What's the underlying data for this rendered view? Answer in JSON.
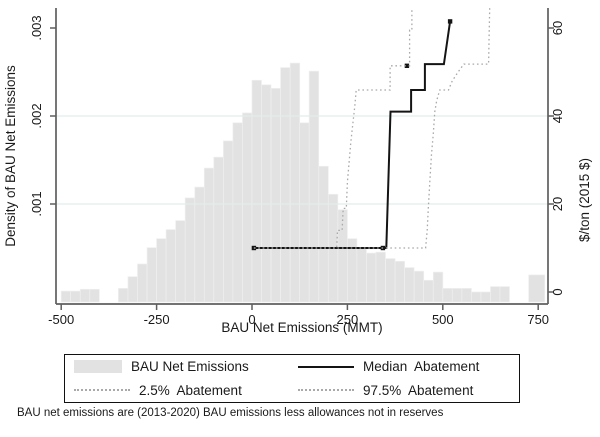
{
  "figure": {
    "x_axis": {
      "title": "BAU Net Emissions (MMT)",
      "ticks": [
        -500,
        -250,
        0,
        250,
        500,
        750
      ]
    },
    "y_left": {
      "title": "Density of BAU Net Emissions",
      "tick_labels": [
        ".001",
        ".002",
        ".003"
      ],
      "tick_prices": [
        20,
        40,
        60
      ]
    },
    "y_right": {
      "title": "$/ton (2015 $)",
      "tick_labels": [
        "0",
        "20",
        "40",
        "60"
      ],
      "tick_prices": [
        0,
        20,
        40,
        60
      ]
    }
  },
  "legend": {
    "items": [
      {
        "label": "BAU Net Emissions",
        "swatch": "bar"
      },
      {
        "label": "Median  Abatement",
        "swatch": "solid-line"
      },
      {
        "label": "2.5%  Abatement",
        "swatch": "dotted-line"
      },
      {
        "label": "97.5%  Abatement",
        "swatch": "dotted-line"
      }
    ]
  },
  "footnote": "BAU net emissions are (2013-2020) BAU emissions less allowances not in reserves",
  "colors": {
    "bar_fill": "#e2e2e2",
    "bar_edge": "#efefef",
    "median_line": "#141414",
    "dotted_line": "#a9a9a9",
    "axis": "#5f5f5f",
    "grid": "#e1efed",
    "text": "#1a1a1a"
  },
  "chart_data": {
    "type": "histogram+step-lines",
    "title": "",
    "xlabel": "BAU Net Emissions (MMT)",
    "ylabel_left": "Density of BAU Net Emissions",
    "ylabel_right": "$/ton (2015 $)",
    "x_range": [
      -515,
      775
    ],
    "y_left_range": [
      0,
      0.003
    ],
    "y_right_range": [
      0,
      65
    ],
    "grid_on": true,
    "grid_prices": [
      20,
      40
    ],
    "legend_position": "bottom",
    "histogram": {
      "name": "BAU Net Emissions",
      "bin_width_mmt": 25,
      "bars": [
        [
          -500,
          -475,
          0.00012
        ],
        [
          -475,
          -450,
          0.00012
        ],
        [
          -450,
          -425,
          0.00014
        ],
        [
          -425,
          -400,
          0.00014
        ],
        [
          -350,
          -325,
          0.00015
        ],
        [
          -325,
          -300,
          0.00028
        ],
        [
          -300,
          -275,
          0.00042
        ],
        [
          -275,
          -250,
          0.0006
        ],
        [
          -250,
          -225,
          0.0007
        ],
        [
          -225,
          -200,
          0.0008
        ],
        [
          -200,
          -175,
          0.0009
        ],
        [
          -175,
          -150,
          0.00115
        ],
        [
          -150,
          -125,
          0.00127
        ],
        [
          -125,
          -100,
          0.00148
        ],
        [
          -100,
          -75,
          0.0016
        ],
        [
          -75,
          -50,
          0.00178
        ],
        [
          -50,
          -25,
          0.00198
        ],
        [
          -25,
          0,
          0.00209
        ],
        [
          0,
          25,
          0.00245
        ],
        [
          25,
          50,
          0.0024
        ],
        [
          50,
          75,
          0.00236
        ],
        [
          75,
          100,
          0.00259
        ],
        [
          100,
          125,
          0.00264
        ],
        [
          125,
          150,
          0.00198
        ],
        [
          150,
          175,
          0.00255
        ],
        [
          175,
          200,
          0.0015
        ],
        [
          200,
          225,
          0.00119
        ],
        [
          225,
          250,
          0.00102
        ],
        [
          250,
          275,
          0.0007
        ],
        [
          275,
          300,
          0.0006
        ],
        [
          300,
          325,
          0.00054
        ],
        [
          325,
          350,
          0.00055
        ],
        [
          350,
          375,
          0.00048
        ],
        [
          375,
          400,
          0.00045
        ],
        [
          400,
          425,
          0.00038
        ],
        [
          425,
          450,
          0.00034
        ],
        [
          450,
          475,
          0.00024
        ],
        [
          475,
          500,
          0.00033
        ],
        [
          500,
          525,
          0.00015
        ],
        [
          525,
          550,
          0.00015
        ],
        [
          550,
          575,
          0.00015
        ],
        [
          575,
          600,
          0.00011
        ],
        [
          600,
          625,
          0.00011
        ],
        [
          625,
          650,
          0.00017
        ],
        [
          650,
          675,
          0.00017
        ],
        [
          725,
          767,
          0.0003
        ]
      ]
    },
    "series": [
      {
        "name": "2.5% Abatement",
        "style": "dotted",
        "units": [
          "MMT",
          "$/ton"
        ],
        "points": [
          [
            5,
            10
          ],
          [
            222,
            10
          ],
          [
            224,
            14
          ],
          [
            236,
            14
          ],
          [
            239,
            19
          ],
          [
            247,
            19
          ],
          [
            250,
            25
          ],
          [
            255,
            30
          ],
          [
            259,
            34
          ],
          [
            264,
            38
          ],
          [
            269,
            42
          ],
          [
            273,
            45.9
          ],
          [
            362,
            45.9
          ],
          [
            362,
            51.4
          ],
          [
            413,
            51.4
          ],
          [
            413,
            59.5
          ],
          [
            419,
            59.5
          ],
          [
            419,
            64.5
          ]
        ]
      },
      {
        "name": "97.5% Abatement",
        "style": "dotted",
        "units": [
          "MMT",
          "$/ton"
        ],
        "points": [
          [
            5,
            10
          ],
          [
            455,
            10
          ],
          [
            459,
            14
          ],
          [
            462,
            19
          ],
          [
            466,
            25
          ],
          [
            470,
            31
          ],
          [
            475,
            36
          ],
          [
            479,
            41
          ],
          [
            484,
            43.5
          ],
          [
            492,
            45.9
          ],
          [
            515,
            45.9
          ],
          [
            525,
            48
          ],
          [
            540,
            50
          ],
          [
            555,
            51.8
          ],
          [
            620,
            51.8
          ],
          [
            621,
            57
          ],
          [
            623,
            64.5
          ]
        ]
      },
      {
        "name": "Median Abatement",
        "style": "solid",
        "units": [
          "MMT",
          "$/ton"
        ],
        "points": [
          [
            5,
            10
          ],
          [
            352,
            10
          ],
          [
            363,
            41
          ],
          [
            417,
            41
          ],
          [
            417,
            45.9
          ],
          [
            453,
            45.9
          ],
          [
            453,
            51.8
          ],
          [
            503,
            51.8
          ],
          [
            519,
            61.5
          ]
        ],
        "markers": [
          [
            5,
            10
          ],
          [
            343,
            10
          ],
          [
            406,
            51.4
          ],
          [
            519,
            61.5
          ]
        ]
      }
    ]
  }
}
